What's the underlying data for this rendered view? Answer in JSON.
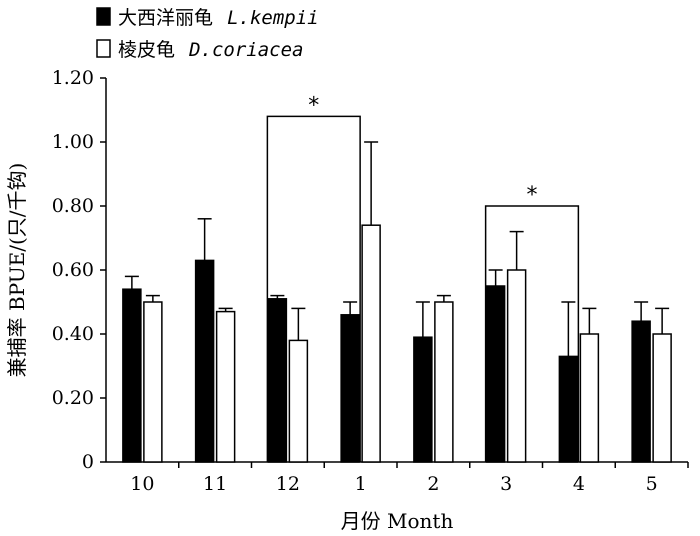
{
  "chart_data": {
    "type": "bar",
    "title": "",
    "xlabel": "月份 Month",
    "ylabel": "兼捕率 BPUE/(只/千钩)",
    "ylim": [
      0,
      1.2
    ],
    "yticks": [
      "0",
      "0.20",
      "0.40",
      "0.60",
      "0.80",
      "1.00",
      "1.20"
    ],
    "categories": [
      "10",
      "11",
      "12",
      "1",
      "2",
      "3",
      "4",
      "5"
    ],
    "grid": false,
    "legend_position": "top-left",
    "series": [
      {
        "name": "大西洋丽龟",
        "name_latin": "L.kempii",
        "color": "#000000",
        "values": [
          0.54,
          0.63,
          0.51,
          0.46,
          0.39,
          0.55,
          0.33,
          0.44
        ],
        "error": [
          0.04,
          0.13,
          0.01,
          0.04,
          0.11,
          0.05,
          0.17,
          0.06
        ]
      },
      {
        "name": "棱皮龟",
        "name_latin": "D.coriacea",
        "color": "#ffffff",
        "values": [
          0.5,
          0.47,
          0.38,
          0.74,
          0.5,
          0.6,
          0.4,
          0.4
        ],
        "error": [
          0.02,
          0.01,
          0.1,
          0.26,
          0.02,
          0.12,
          0.08,
          0.08
        ]
      }
    ],
    "annotations": [
      {
        "text": "*",
        "from_category": "12",
        "to_category": "1"
      },
      {
        "text": "*",
        "from_category": "3",
        "to_category": "4"
      }
    ]
  }
}
